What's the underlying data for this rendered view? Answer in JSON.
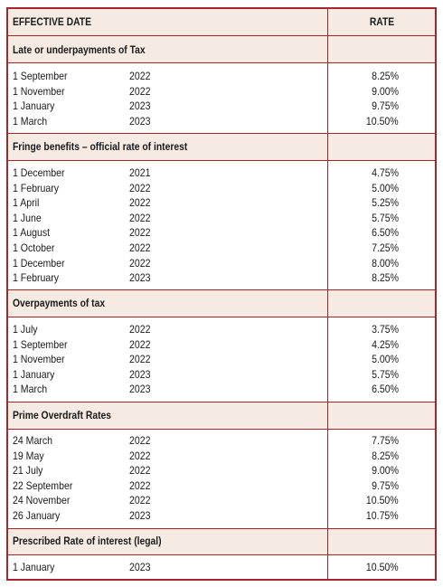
{
  "header": {
    "effective_date": "EFFECTIVE DATE",
    "rate": "RATE"
  },
  "sections": [
    {
      "title": "Late or underpayments of Tax",
      "rows": [
        {
          "date": "1 September",
          "year": "2022",
          "rate": "8.25%"
        },
        {
          "date": "1 November",
          "year": "2022",
          "rate": "9.00%"
        },
        {
          "date": "1 January",
          "year": "2023",
          "rate": "9.75%"
        },
        {
          "date": "1 March",
          "year": "2023",
          "rate": "10.50%"
        }
      ]
    },
    {
      "title": "Fringe benefits – official rate of interest",
      "rows": [
        {
          "date": "1 December",
          "year": "2021",
          "rate": "4.75%"
        },
        {
          "date": "1 February",
          "year": "2022",
          "rate": "5.00%"
        },
        {
          "date": "1 April",
          "year": "2022",
          "rate": "5.25%"
        },
        {
          "date": "1 June",
          "year": "2022",
          "rate": "5.75%"
        },
        {
          "date": "1 August",
          "year": "2022",
          "rate": "6.50%"
        },
        {
          "date": "1 October",
          "year": "2022",
          "rate": "7.25%"
        },
        {
          "date": "1 December",
          "year": "2022",
          "rate": "8.00%"
        },
        {
          "date": "1 February",
          "year": "2023",
          "rate": "8.25%"
        }
      ]
    },
    {
      "title": "Overpayments of tax",
      "rows": [
        {
          "date": "1 July",
          "year": "2022",
          "rate": "3.75%"
        },
        {
          "date": "1 September",
          "year": "2022",
          "rate": "4.25%"
        },
        {
          "date": "1 November",
          "year": "2022",
          "rate": "5.00%"
        },
        {
          "date": "1 January",
          "year": "2023",
          "rate": "5.75%"
        },
        {
          "date": "1 March",
          "year": "2023",
          "rate": "6.50%"
        }
      ]
    },
    {
      "title": "Prime Overdraft Rates",
      "rows": [
        {
          "date": "24 March",
          "year": "2022",
          "rate": "7.75%"
        },
        {
          "date": "19 May",
          "year": "2022",
          "rate": "8.25%"
        },
        {
          "date": "21 July",
          "year": "2022",
          "rate": "9.00%"
        },
        {
          "date": "22 September",
          "year": "2022",
          "rate": "9.75%"
        },
        {
          "date": "24 November",
          "year": "2022",
          "rate": "10.50%"
        },
        {
          "date": "26 January",
          "year": "2023",
          "rate": "10.75%"
        }
      ]
    },
    {
      "title": "Prescribed Rate of interest (legal)",
      "rows": [
        {
          "date": "1 January",
          "year": "2023",
          "rate": "10.50%"
        }
      ]
    }
  ]
}
